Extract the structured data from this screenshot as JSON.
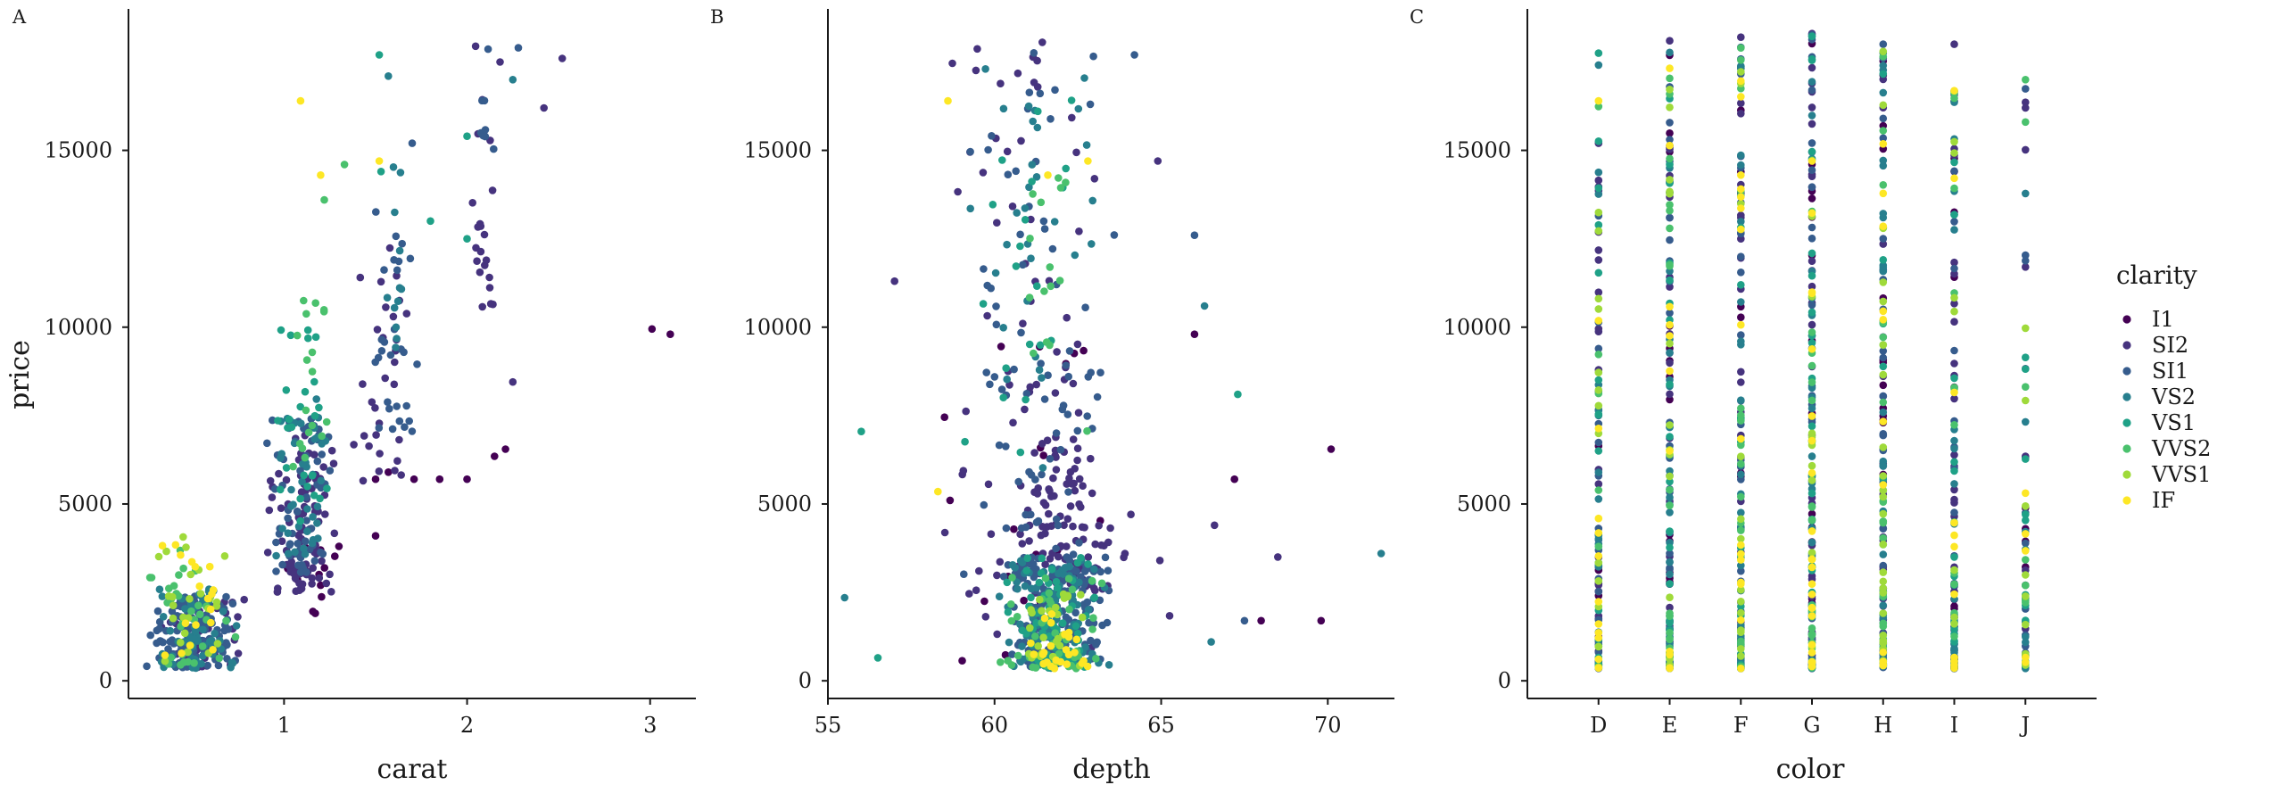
{
  "palette": {
    "I1": "#440154",
    "SI2": "#46337E",
    "SI1": "#365C8D",
    "VS2": "#277F8E",
    "VS1": "#1FA187",
    "VVS2": "#4AC16D",
    "VVS1": "#9FDA3A",
    "IF": "#FDE725"
  },
  "legend": {
    "title": "clarity",
    "items": [
      "I1",
      "SI2",
      "SI1",
      "VS2",
      "VS1",
      "VVS2",
      "VVS1",
      "IF"
    ]
  },
  "chart_data": [
    {
      "type": "scatter",
      "panel": "A",
      "xlabel": "carat",
      "ylabel": "price",
      "xlim": [
        0.15,
        3.25
      ],
      "ylim": [
        -500,
        19000
      ],
      "xticks": [
        1,
        2,
        3
      ],
      "yticks": [
        0,
        5000,
        10000,
        15000
      ],
      "color_by": "clarity",
      "clusters": [
        {
          "clarity": "SI1",
          "count": 120,
          "x": [
            0.23,
            0.75
          ],
          "y": [
            350,
            2400
          ]
        },
        {
          "clarity": "VS2",
          "count": 60,
          "x": [
            0.25,
            0.75
          ],
          "y": [
            350,
            2600
          ]
        },
        {
          "clarity": "VVS2",
          "count": 35,
          "x": [
            0.25,
            0.75
          ],
          "y": [
            400,
            3800
          ]
        },
        {
          "clarity": "VVS1",
          "count": 25,
          "x": [
            0.25,
            0.75
          ],
          "y": [
            500,
            4200
          ]
        },
        {
          "clarity": "IF",
          "count": 18,
          "x": [
            0.3,
            0.75
          ],
          "y": [
            700,
            3900
          ]
        },
        {
          "clarity": "SI2",
          "count": 45,
          "x": [
            0.3,
            0.8
          ],
          "y": [
            350,
            2300
          ]
        },
        {
          "clarity": "SI2",
          "count": 90,
          "x": [
            0.9,
            1.3
          ],
          "y": [
            2500,
            7000
          ]
        },
        {
          "clarity": "SI1",
          "count": 60,
          "x": [
            0.9,
            1.3
          ],
          "y": [
            3000,
            7500
          ]
        },
        {
          "clarity": "VS2",
          "count": 40,
          "x": [
            0.9,
            1.25
          ],
          "y": [
            3500,
            8000
          ]
        },
        {
          "clarity": "VS1",
          "count": 25,
          "x": [
            0.95,
            1.25
          ],
          "y": [
            4500,
            10000
          ]
        },
        {
          "clarity": "VVS2",
          "count": 18,
          "x": [
            1.0,
            1.25
          ],
          "y": [
            6000,
            11000
          ]
        },
        {
          "clarity": "I1",
          "count": 14,
          "x": [
            0.9,
            1.3
          ],
          "y": [
            1800,
            4000
          ]
        },
        {
          "clarity": "SI2",
          "count": 30,
          "x": [
            1.35,
            1.7
          ],
          "y": [
            5500,
            12500
          ]
        },
        {
          "clarity": "SI1",
          "count": 28,
          "x": [
            1.45,
            1.75
          ],
          "y": [
            7000,
            13300
          ]
        },
        {
          "clarity": "VS2",
          "count": 12,
          "x": [
            1.5,
            1.75
          ],
          "y": [
            9000,
            15200
          ]
        },
        {
          "clarity": "SI2",
          "count": 22,
          "x": [
            2.0,
            2.2
          ],
          "y": [
            10500,
            18200
          ]
        },
        {
          "clarity": "SI1",
          "count": 8,
          "x": [
            2.0,
            2.3
          ],
          "y": [
            15000,
            18100
          ]
        }
      ],
      "points": [
        {
          "clarity": "I1",
          "x": 3.01,
          "y": 9950
        },
        {
          "clarity": "I1",
          "x": 3.11,
          "y": 9800
        },
        {
          "clarity": "IF",
          "x": 1.09,
          "y": 16400
        },
        {
          "clarity": "IF",
          "x": 1.2,
          "y": 14300
        },
        {
          "clarity": "IF",
          "x": 1.52,
          "y": 14700
        },
        {
          "clarity": "SI2",
          "x": 2.52,
          "y": 17600
        },
        {
          "clarity": "SI2",
          "x": 2.42,
          "y": 16200
        },
        {
          "clarity": "SI2",
          "x": 2.25,
          "y": 8450
        },
        {
          "clarity": "I1",
          "x": 2.0,
          "y": 5700
        },
        {
          "clarity": "I1",
          "x": 2.21,
          "y": 6550
        },
        {
          "clarity": "I1",
          "x": 2.15,
          "y": 6350
        },
        {
          "clarity": "I1",
          "x": 1.85,
          "y": 5700
        },
        {
          "clarity": "I1",
          "x": 1.71,
          "y": 5700
        },
        {
          "clarity": "I1",
          "x": 1.5,
          "y": 4100
        },
        {
          "clarity": "I1",
          "x": 1.2,
          "y": 2700
        },
        {
          "clarity": "I1",
          "x": 1.5,
          "y": 5700
        },
        {
          "clarity": "I1",
          "x": 1.57,
          "y": 5900
        },
        {
          "clarity": "I1",
          "x": 1.2,
          "y": 3700
        },
        {
          "clarity": "I1",
          "x": 1.3,
          "y": 3800
        },
        {
          "clarity": "VS1",
          "x": 1.52,
          "y": 17700
        },
        {
          "clarity": "VS2",
          "x": 1.57,
          "y": 17100
        },
        {
          "clarity": "VS1",
          "x": 1.53,
          "y": 14400
        },
        {
          "clarity": "VS1",
          "x": 1.8,
          "y": 13000
        },
        {
          "clarity": "SI1",
          "x": 1.7,
          "y": 15200
        },
        {
          "clarity": "VVS2",
          "x": 1.22,
          "y": 13600
        },
        {
          "clarity": "VVS2",
          "x": 1.33,
          "y": 14600
        },
        {
          "clarity": "VS1",
          "x": 2.0,
          "y": 15400
        },
        {
          "clarity": "VS1",
          "x": 2.0,
          "y": 12500
        },
        {
          "clarity": "SI1",
          "x": 2.28,
          "y": 17900
        },
        {
          "clarity": "SI2",
          "x": 2.18,
          "y": 17500
        },
        {
          "clarity": "VS2",
          "x": 2.25,
          "y": 17000
        }
      ]
    },
    {
      "type": "scatter",
      "panel": "B",
      "xlabel": "depth",
      "ylabel": "",
      "xlim": [
        55,
        72
      ],
      "ylim": [
        -500,
        19000
      ],
      "xticks": [
        55,
        60,
        65,
        70
      ],
      "yticks": [
        0,
        5000,
        10000,
        15000
      ],
      "color_by": "clarity",
      "clusters": [
        {
          "clarity": "SI1",
          "count": 180,
          "x": [
            60.0,
            63.5
          ],
          "y": [
            350,
            3500
          ]
        },
        {
          "clarity": "VS2",
          "count": 100,
          "x": [
            60.0,
            63.5
          ],
          "y": [
            350,
            3500
          ]
        },
        {
          "clarity": "VS1",
          "count": 60,
          "x": [
            60.0,
            63.5
          ],
          "y": [
            350,
            3500
          ]
        },
        {
          "clarity": "VVS2",
          "count": 40,
          "x": [
            60.0,
            63.5
          ],
          "y": [
            350,
            3000
          ]
        },
        {
          "clarity": "VVS1",
          "count": 30,
          "x": [
            60.5,
            63.0
          ],
          "y": [
            350,
            2500
          ]
        },
        {
          "clarity": "IF",
          "count": 25,
          "x": [
            60.5,
            63.0
          ],
          "y": [
            350,
            2000
          ]
        },
        {
          "clarity": "SI2",
          "count": 100,
          "x": [
            60.5,
            63.5
          ],
          "y": [
            2500,
            7000
          ]
        },
        {
          "clarity": "SI1",
          "count": 50,
          "x": [
            59.0,
            64.0
          ],
          "y": [
            3000,
            9000
          ]
        },
        {
          "clarity": "SI2",
          "count": 45,
          "x": [
            58.5,
            63.5
          ],
          "y": [
            7000,
            18200
          ]
        },
        {
          "clarity": "VS2",
          "count": 30,
          "x": [
            59.0,
            64.0
          ],
          "y": [
            6000,
            18000
          ]
        },
        {
          "clarity": "SI1",
          "count": 35,
          "x": [
            58.5,
            64.0
          ],
          "y": [
            8000,
            18000
          ]
        },
        {
          "clarity": "VS1",
          "count": 20,
          "x": [
            59.0,
            63.5
          ],
          "y": [
            6000,
            17000
          ]
        },
        {
          "clarity": "VVS2",
          "count": 15,
          "x": [
            60.0,
            63.0
          ],
          "y": [
            6000,
            16000
          ]
        },
        {
          "clarity": "I1",
          "count": 20,
          "x": [
            57.5,
            64.5
          ],
          "y": [
            500,
            10000
          ]
        },
        {
          "clarity": "SI2",
          "count": 40,
          "x": [
            57.0,
            65.5
          ],
          "y": [
            400,
            6000
          ]
        }
      ],
      "points": [
        {
          "clarity": "VS2",
          "x": 55.5,
          "y": 2350
        },
        {
          "clarity": "VS1",
          "x": 56.0,
          "y": 7050
        },
        {
          "clarity": "VS1",
          "x": 56.5,
          "y": 650
        },
        {
          "clarity": "SI2",
          "x": 57.0,
          "y": 11300
        },
        {
          "clarity": "SI2",
          "x": 68.5,
          "y": 3500
        },
        {
          "clarity": "I1",
          "x": 70.1,
          "y": 6550
        },
        {
          "clarity": "I1",
          "x": 69.8,
          "y": 1700
        },
        {
          "clarity": "VS2",
          "x": 71.6,
          "y": 3600
        },
        {
          "clarity": "VS1",
          "x": 67.3,
          "y": 8100
        },
        {
          "clarity": "I1",
          "x": 67.2,
          "y": 5700
        },
        {
          "clarity": "SI2",
          "x": 66.6,
          "y": 4400
        },
        {
          "clarity": "SI1",
          "x": 66.0,
          "y": 12600
        },
        {
          "clarity": "VS2",
          "x": 66.3,
          "y": 10600
        },
        {
          "clarity": "SI2",
          "x": 64.9,
          "y": 14700
        },
        {
          "clarity": "SI1",
          "x": 64.2,
          "y": 17700
        },
        {
          "clarity": "I1",
          "x": 66.0,
          "y": 9800
        },
        {
          "clarity": "I1",
          "x": 68.0,
          "y": 1700
        },
        {
          "clarity": "SI1",
          "x": 67.5,
          "y": 1700
        },
        {
          "clarity": "VS2",
          "x": 66.5,
          "y": 1100
        },
        {
          "clarity": "IF",
          "x": 58.3,
          "y": 5350
        },
        {
          "clarity": "IF",
          "x": 58.6,
          "y": 16400
        },
        {
          "clarity": "IF",
          "x": 61.6,
          "y": 14300
        },
        {
          "clarity": "IF",
          "x": 62.8,
          "y": 14700
        }
      ]
    },
    {
      "type": "scatter",
      "panel": "C",
      "xlabel": "color",
      "ylabel": "",
      "categories": [
        "D",
        "E",
        "F",
        "G",
        "H",
        "I",
        "J"
      ],
      "ylim": [
        -500,
        19000
      ],
      "yticks": [
        0,
        5000,
        10000,
        15000
      ],
      "color_by": "clarity",
      "columns": [
        {
          "category": "D",
          "n": 120,
          "ymax": 17800
        },
        {
          "category": "E",
          "n": 170,
          "ymax": 18100
        },
        {
          "category": "F",
          "n": 160,
          "ymax": 18200
        },
        {
          "category": "G",
          "n": 190,
          "ymax": 18300
        },
        {
          "category": "H",
          "n": 170,
          "ymax": 18000
        },
        {
          "category": "I",
          "n": 130,
          "ymax": 18000
        },
        {
          "category": "J",
          "n": 70,
          "ymax": 17000
        }
      ],
      "points": [
        {
          "clarity": "VS1",
          "x": "D",
          "y": 17750
        },
        {
          "clarity": "IF",
          "x": "D",
          "y": 16400
        },
        {
          "clarity": "SI2",
          "x": "D",
          "y": 15200
        },
        {
          "clarity": "SI2",
          "x": "E",
          "y": 18100
        },
        {
          "clarity": "VS1",
          "x": "E",
          "y": 14600
        },
        {
          "clarity": "SI2",
          "x": "F",
          "y": 18200
        },
        {
          "clarity": "IF",
          "x": "F",
          "y": 14300
        },
        {
          "clarity": "SI2",
          "x": "G",
          "y": 18300
        },
        {
          "clarity": "IF",
          "x": "G",
          "y": 14700
        },
        {
          "clarity": "SI1",
          "x": "H",
          "y": 18000
        },
        {
          "clarity": "SI2",
          "x": "I",
          "y": 18000
        },
        {
          "clarity": "VVS2",
          "x": "J",
          "y": 17000
        },
        {
          "clarity": "SI2",
          "x": "J",
          "y": 16200
        }
      ]
    }
  ]
}
